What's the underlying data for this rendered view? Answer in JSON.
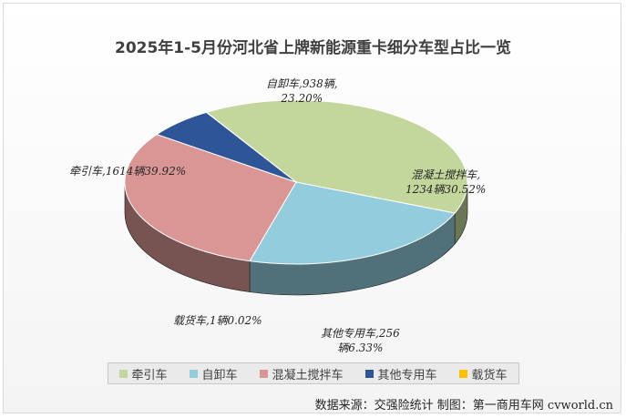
{
  "title": "2025年1-5月份河北省上牌新能源重卡细分车型占比一览",
  "source": "数据来源：交强险统计  制图：第一商用车网 cvworld.cn",
  "chart_data": {
    "type": "pie",
    "title": "2025年1-5月份河北省上牌新能源重卡细分车型占比一览",
    "legend_position": "bottom",
    "slices": [
      {
        "name": "牵引车",
        "value": 1614,
        "percent": 39.92,
        "color": "#c3d69b",
        "label": "牵引车,1614辆39.92%"
      },
      {
        "name": "自卸车",
        "value": 938,
        "percent": 23.2,
        "color": "#93cddd",
        "label_line1": "自卸车,938辆,",
        "label_line2": "23.20%"
      },
      {
        "name": "混凝土搅拌车",
        "value": 1234,
        "percent": 30.52,
        "color": "#d99694",
        "label_line1": "混凝土搅拌车,",
        "label_line2": "1234辆30.52%"
      },
      {
        "name": "其他专用车",
        "value": 256,
        "percent": 6.33,
        "color": "#2e5597",
        "label_line1": "其他专用车,256",
        "label_line2": "辆6.33%"
      },
      {
        "name": "载货车",
        "value": 1,
        "percent": 0.02,
        "color": "#ffc000",
        "label": "载货车,1辆0.02%"
      }
    ]
  }
}
